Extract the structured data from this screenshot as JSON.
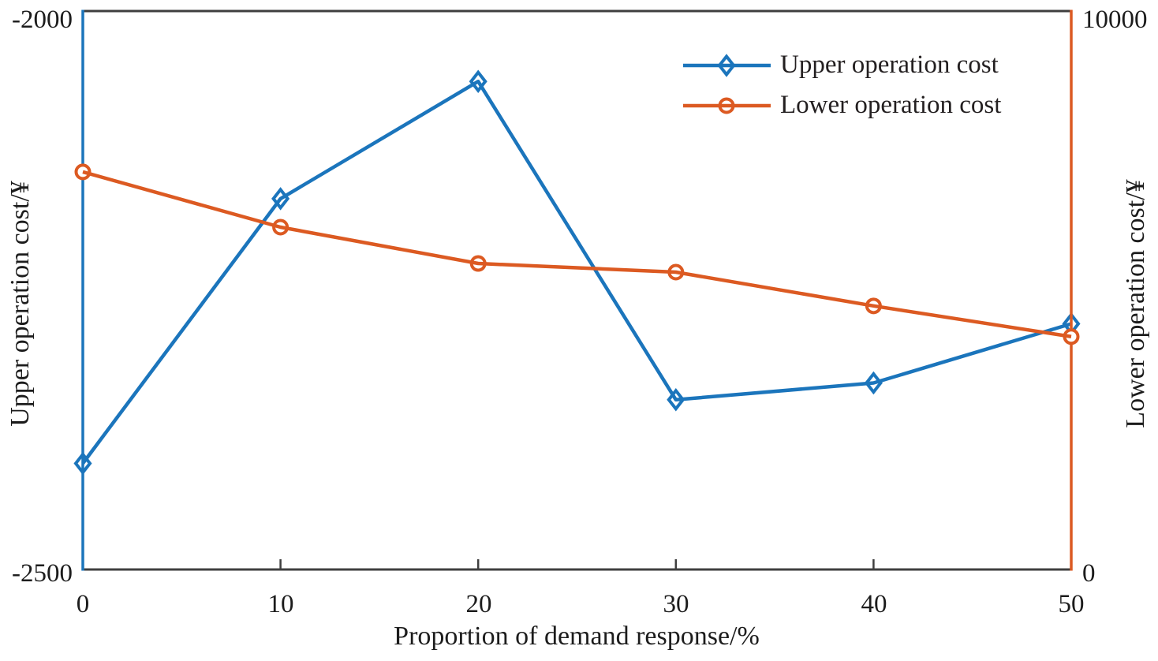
{
  "chart_data": {
    "type": "line",
    "title": "",
    "grid": false,
    "legend_position": "top-right-inside",
    "x": {
      "label": "Proportion of demand response/%",
      "ticks": [
        "0",
        "10",
        "20",
        "30",
        "40",
        "50"
      ],
      "range": [
        0,
        50
      ]
    },
    "y_left": {
      "label": "Upper operation cost/¥",
      "ticks": [
        "-2000",
        "-2500"
      ],
      "range": [
        -2500,
        -2000
      ],
      "axis_color": "#1b75bc"
    },
    "y_right": {
      "label": "Lower operation cost/¥",
      "ticks": [
        "10000",
        "0"
      ],
      "range": [
        0,
        10000
      ],
      "axis_color": "#dc5a22"
    },
    "frame_color": "#3f3f3f",
    "series": [
      {
        "name": "Upper operation cost",
        "axis": "left",
        "marker": "diamond",
        "color": "#1b75bc",
        "x": [
          0,
          10,
          20,
          30,
          40,
          50
        ],
        "values": [
          -2405,
          -2168,
          -2063,
          -2348,
          -2333,
          -2280
        ]
      },
      {
        "name": "Lower operation cost",
        "axis": "right",
        "marker": "circle",
        "color": "#dc5a22",
        "x": [
          0,
          10,
          20,
          30,
          40,
          50
        ],
        "values": [
          7120,
          6130,
          5480,
          5325,
          4720,
          4170
        ]
      }
    ]
  }
}
